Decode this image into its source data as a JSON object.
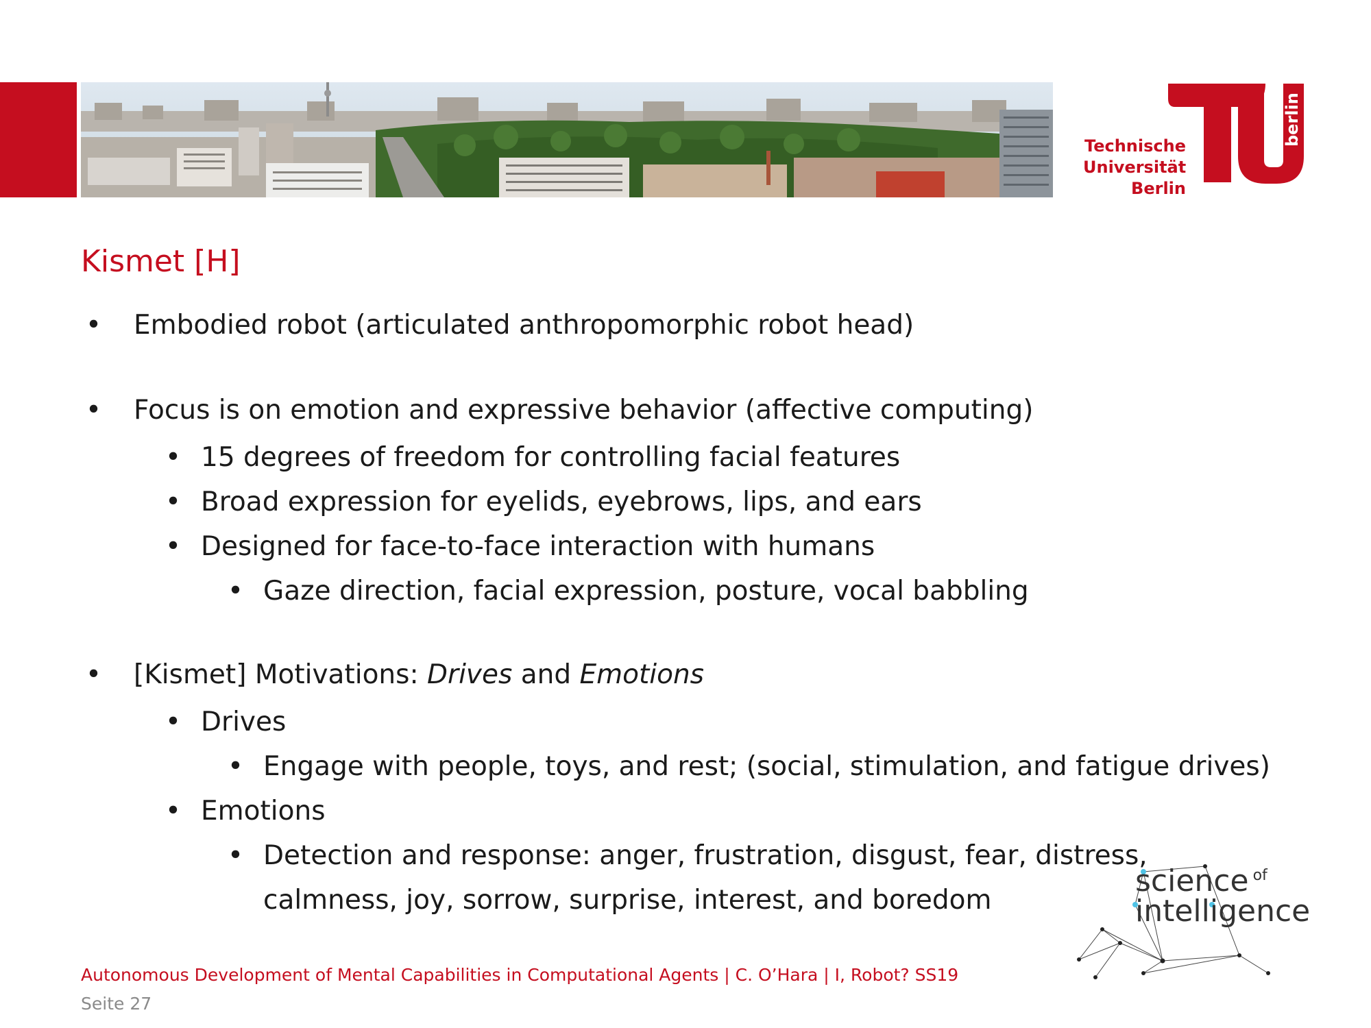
{
  "header": {
    "university_logo": {
      "lines": [
        "Technische",
        "Universität",
        "Berlin"
      ],
      "tag": "berlin",
      "icon": "tu-berlin-logo-icon",
      "color": "#c50e1f"
    },
    "banner_image": "berlin-skyline-panorama"
  },
  "slide": {
    "title": "Kismet [H]",
    "bullets": [
      {
        "text": "Embodied robot (articulated anthropomorphic robot head)"
      },
      {
        "text": "Focus is on emotion and expressive behavior (affective computing)"
      },
      {
        "text": "15 degrees of freedom for controlling facial features"
      },
      {
        "text": "Broad expression for eyelids, eyebrows, lips, and ears"
      },
      {
        "text": "Designed for face-to-face interaction with humans"
      },
      {
        "text": "Gaze direction, facial expression, posture, vocal babbling"
      },
      {
        "prefix": "[Kismet] Motivations: ",
        "em1": "Drives",
        "mid": " and ",
        "em2": "Emotions"
      },
      {
        "text": "Drives"
      },
      {
        "text": "Engage with people, toys, and rest; (social, stimulation, and fatigue drives)"
      },
      {
        "text": "Emotions"
      },
      {
        "text": "Detection and response: anger, frustration, disgust, fear, distress,"
      },
      {
        "text": "calmness, joy, sorrow, surprise, interest, and boredom"
      }
    ],
    "bullet_glyph": "•"
  },
  "footer": {
    "course_line": "Autonomous Development of Mental Capabilities in Computational Agents | C. O’Hara | I, Robot? SS19",
    "page_label": "Seite 27"
  },
  "science_of_intelligence_logo": {
    "word1": "science",
    "word2": "of",
    "word3": "intelligence",
    "icon": "network-graph-icon"
  },
  "colors": {
    "accent": "#c50e1f",
    "text": "#1a1a1a",
    "muted": "#8a8a8a"
  }
}
